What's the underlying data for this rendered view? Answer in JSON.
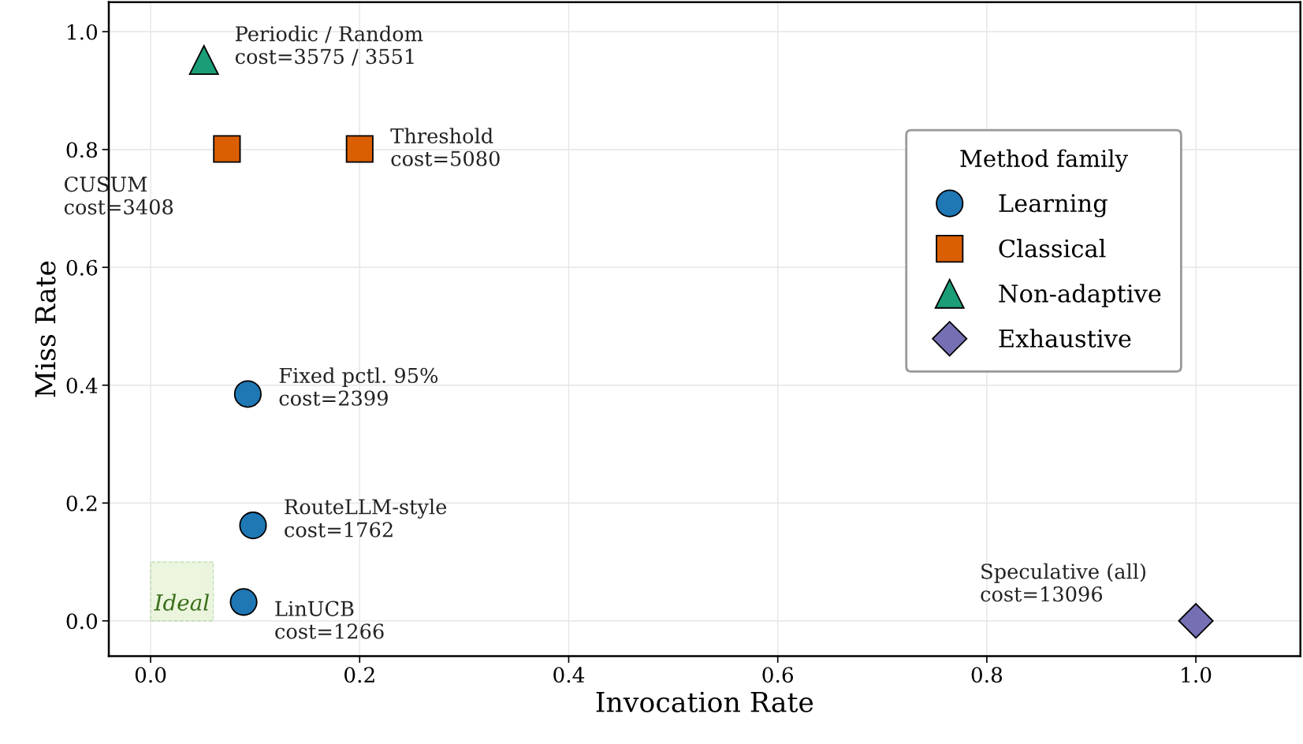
{
  "chart_data": {
    "type": "scatter",
    "xlabel": "Invocation Rate",
    "ylabel": "Miss Rate",
    "legend_title": "Method family",
    "xlim": [
      -0.04,
      1.1
    ],
    "ylim": [
      -0.06,
      1.05
    ],
    "xticks": [
      {
        "value": 0,
        "label": "0.0"
      },
      0.2,
      0.4,
      0.6,
      0.8,
      {
        "value": 1,
        "label": "1.0"
      }
    ],
    "yticks": [
      {
        "value": 0,
        "label": "0.0"
      },
      0.2,
      0.4,
      0.6,
      0.8,
      {
        "value": 1,
        "label": "1.0"
      }
    ],
    "grid": true,
    "legend": "right",
    "series": [
      {
        "name": "Learning",
        "color": "#1f77b4",
        "marker": "circle",
        "x": [
          0.093,
          0.098,
          0.089
        ],
        "values": [
          0.385,
          0.162,
          0.032
        ]
      },
      {
        "name": "Classical",
        "color": "#d95f02",
        "marker": "square",
        "x": [
          0.073,
          0.2
        ],
        "values": [
          0.801,
          0.801
        ]
      },
      {
        "name": "Non-adaptive",
        "color": "#1b9e77",
        "marker": "triangle",
        "x": [
          0.051
        ],
        "values": [
          0.952
        ]
      },
      {
        "name": "Exhaustive",
        "color": "#7570b3",
        "marker": "diamond",
        "x": [
          1.0
        ],
        "values": [
          0.0
        ]
      }
    ],
    "annotations": [
      {
        "text": "Periodic / Random\ncost=3575 / 3551",
        "x": 0.051,
        "y": 0.952
      },
      {
        "text": "Threshold\ncost=5080",
        "x": 0.2,
        "y": 0.801
      },
      "CUSUM\ncost=3408",
      {
        "text": "Fixed pctl. 95%\ncost=2399",
        "x": 0.093,
        "y": 0.385
      },
      {
        "text": "RouteLLM-style\ncost=1762",
        "x": 0.098,
        "y": 0.162
      },
      {
        "text": "LinUCB\ncost=1266",
        "x": 0.089,
        "y": 0.032
      },
      "Speculative (all)\ncost=13096",
      "Ideal"
    ]
  }
}
